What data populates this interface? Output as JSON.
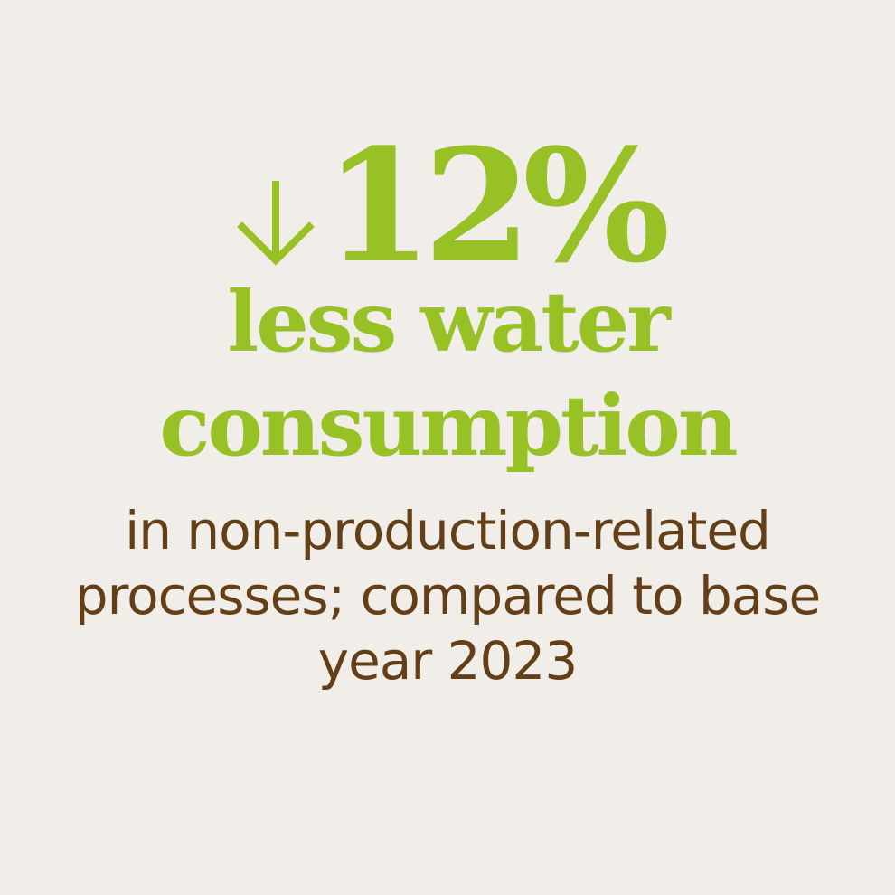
{
  "stat": {
    "value": "12%",
    "direction_icon": "arrow-down-icon",
    "accent_color": "#97c124",
    "text_color": "#633f17",
    "background_color": "#f1ede8"
  },
  "headline": {
    "line1": "less water",
    "line2": "consumption"
  },
  "description": {
    "line1": "in non-production-related",
    "line2": "processes; compared to base",
    "line3": "year 2023"
  }
}
